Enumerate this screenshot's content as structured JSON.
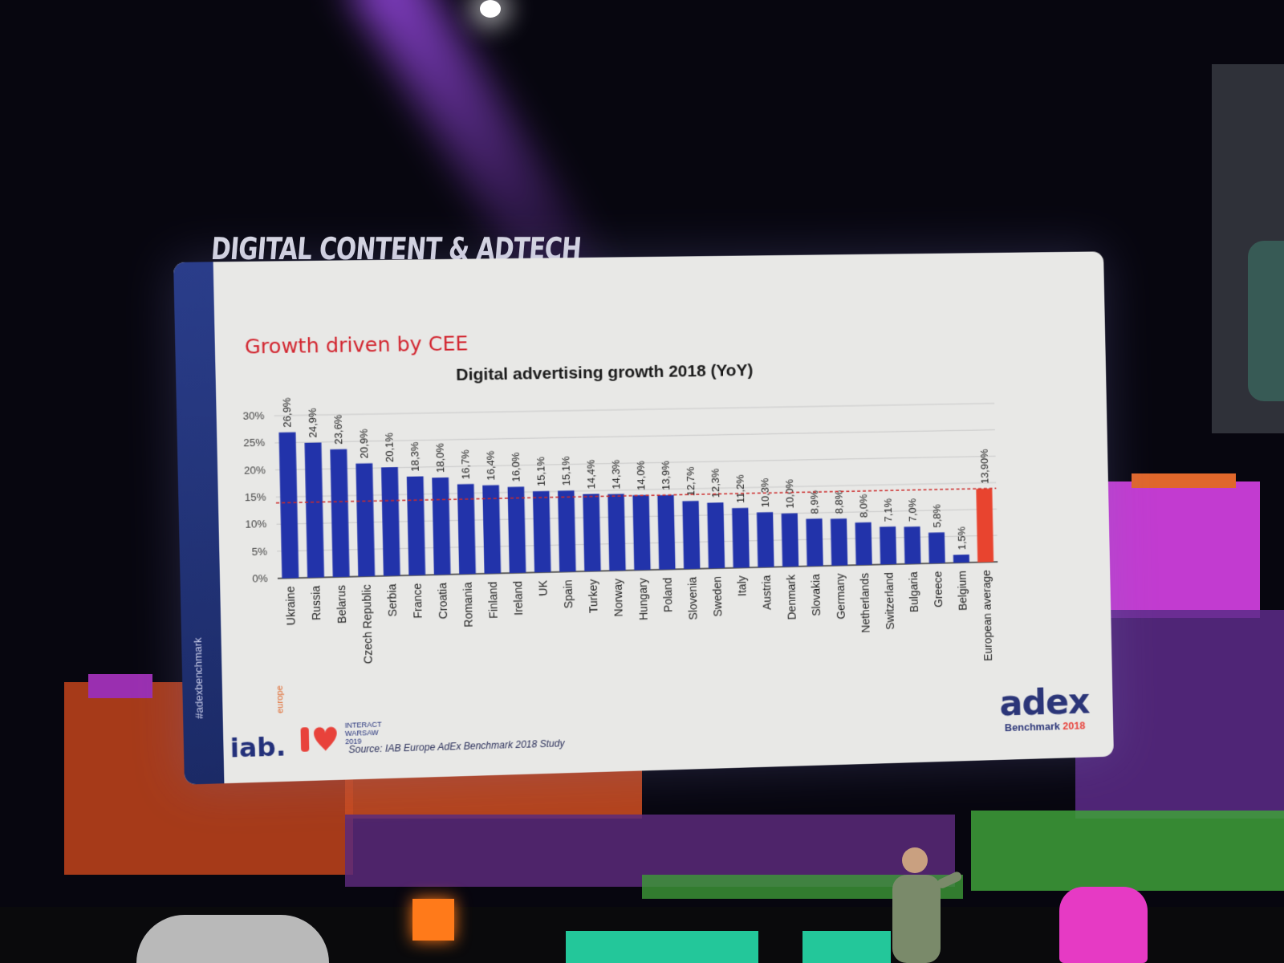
{
  "stage": {
    "title": "DIGITAL CONTENT & ADTECH"
  },
  "slide": {
    "headline": "Growth driven by CEE",
    "source": "Source: IAB Europe AdEx Benchmark 2018 Study",
    "hashtag": "#adexbenchmark",
    "logo_iab": "iab.",
    "logo_iab_sub": "europe",
    "logo_interact": [
      "INTERACT",
      "WARSAW",
      "2019"
    ],
    "logo_adex": "adex",
    "logo_adex_sub": "Benchmark",
    "logo_adex_year": "2018"
  },
  "chart_data": {
    "type": "bar",
    "title": "Digital advertising growth 2018 (YoY)",
    "categories": [
      "Ukraine",
      "Russia",
      "Belarus",
      "Czech Republic",
      "Serbia",
      "France",
      "Croatia",
      "Romania",
      "Finland",
      "Ireland",
      "UK",
      "Spain",
      "Turkey",
      "Norway",
      "Hungary",
      "Poland",
      "Slovenia",
      "Sweden",
      "Italy",
      "Austria",
      "Denmark",
      "Slovakia",
      "Germany",
      "Netherlands",
      "Switzerland",
      "Bulgaria",
      "Greece",
      "Belgium",
      "European average"
    ],
    "values": [
      26.9,
      24.9,
      23.6,
      20.9,
      20.1,
      18.3,
      18.0,
      16.7,
      16.4,
      16.0,
      15.1,
      15.1,
      14.4,
      14.3,
      14.0,
      13.9,
      12.7,
      12.3,
      11.2,
      10.3,
      10.0,
      8.9,
      8.8,
      8.0,
      7.1,
      7.0,
      5.8,
      1.5,
      13.9
    ],
    "value_labels": [
      "26,9%",
      "24,9%",
      "23,6%",
      "20,9%",
      "20,1%",
      "18,3%",
      "18,0%",
      "16,7%",
      "16,4%",
      "16,0%",
      "15,1%",
      "15,1%",
      "14,4%",
      "14,3%",
      "14,0%",
      "13,9%",
      "12,7%",
      "12,3%",
      "11,2%",
      "10,3%",
      "10,0%",
      "8,9%",
      "8,8%",
      "8,0%",
      "7,1%",
      "7,0%",
      "5,8%",
      "1,5%",
      "13,90%"
    ],
    "yticks": [
      "0%",
      "5%",
      "10%",
      "15%",
      "20%",
      "25%",
      "30%"
    ],
    "ylim": [
      0,
      30
    ],
    "reference_line": 13.9,
    "highlight_category": "European average",
    "colors": {
      "bar": "#2233aa",
      "highlight": "#e8442f",
      "reference": "#cc2a2a"
    },
    "grid": true,
    "legend": "none"
  }
}
